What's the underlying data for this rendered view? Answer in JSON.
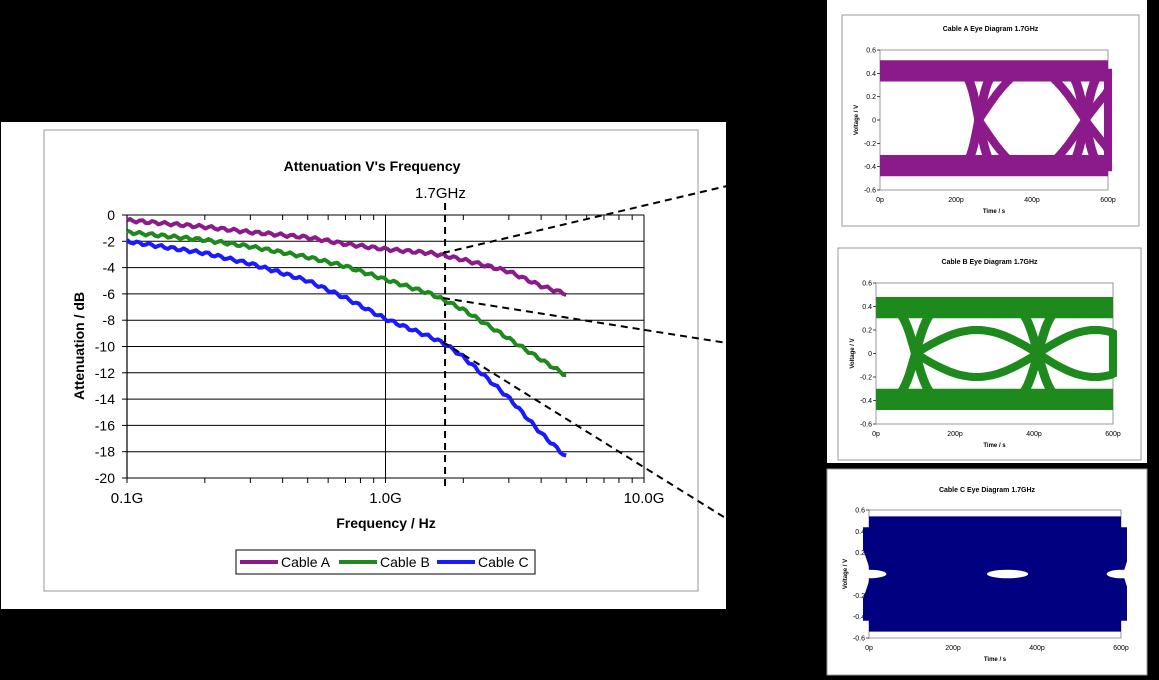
{
  "main_chart": {
    "title": "Attenuation V's Frequency",
    "xlabel": "Frequency / Hz",
    "ylabel": "Attenuation / dB",
    "marker_label": "1.7GHz",
    "x_tick_labels": [
      "0.1G",
      "1.0G",
      "10.0G"
    ],
    "y_tick_labels": [
      "0",
      "-2",
      "-4",
      "-6",
      "-8",
      "-10",
      "-12",
      "-14",
      "-16",
      "-18",
      "-20"
    ],
    "legend": [
      "Cable A",
      "Cable B",
      "Cable C"
    ]
  },
  "eye_titles": [
    "Cable A Eye Diagram 1.7GHz",
    "Cable B Eye Diagram 1.7GHz",
    "Cable C Eye Diagram 1.7GHz"
  ],
  "eye_xlabel": "Time / s",
  "eye_ylabel": "Voltage / V",
  "eye_x_tick_labels": [
    "0p",
    "200p",
    "400p",
    "600p"
  ],
  "eye_y_tick_labels": [
    "0.6",
    "0.4",
    "0.2",
    "0",
    "-0.2",
    "-0.4",
    "-0.6"
  ],
  "colors": {
    "cable_a": "#8b1a8b",
    "cable_b": "#1e8a1e",
    "cable_c": "#1a1aff",
    "cable_c_eye": "#000080"
  },
  "chart_data": [
    {
      "type": "line",
      "title": "Attenuation V's Frequency",
      "xlabel": "Frequency / Hz",
      "ylabel": "Attenuation / dB",
      "x_scale": "log",
      "x_unit": "GHz",
      "xlim": [
        0.1,
        10
      ],
      "ylim": [
        -20,
        0
      ],
      "grid": true,
      "legend_position": "bottom",
      "annotation": {
        "label": "1.7GHz",
        "x": 1.7
      },
      "x": [
        0.1,
        0.2,
        0.3,
        0.5,
        0.7,
        1.0,
        1.5,
        1.7,
        2.0,
        3.0,
        4.0,
        5.0
      ],
      "series": [
        {
          "name": "Cable A",
          "values": [
            -0.4,
            -0.9,
            -1.3,
            -1.7,
            -2.2,
            -2.6,
            -2.9,
            -3.1,
            -3.4,
            -4.3,
            -5.4,
            -6.0
          ]
        },
        {
          "name": "Cable B",
          "values": [
            -1.3,
            -1.9,
            -2.4,
            -3.2,
            -3.9,
            -4.9,
            -6.0,
            -6.5,
            -7.2,
            -9.4,
            -11.0,
            -12.2
          ]
        },
        {
          "name": "Cable C",
          "values": [
            -2.0,
            -2.9,
            -3.7,
            -5.0,
            -6.3,
            -7.9,
            -9.3,
            -9.8,
            -10.8,
            -13.9,
            -16.6,
            -18.4
          ]
        }
      ]
    },
    {
      "type": "scatter",
      "title": "Cable A Eye Diagram 1.7GHz",
      "xlabel": "Time / s",
      "ylabel": "Voltage / V",
      "xlim": [
        0,
        600
      ],
      "x_unit": "ps",
      "ylim": [
        -0.6,
        0.6
      ],
      "levels": [
        0.45,
        -0.42
      ],
      "crossings": [
        260,
        540
      ],
      "eye_open_amplitude": 0.44
    },
    {
      "type": "scatter",
      "title": "Cable B Eye Diagram 1.7GHz",
      "xlabel": "Time / s",
      "ylabel": "Voltage / V",
      "xlim": [
        0,
        600
      ],
      "x_unit": "ps",
      "ylim": [
        -0.6,
        0.6
      ],
      "levels": [
        0.42,
        -0.42
      ],
      "crossings": [
        100,
        410
      ],
      "eye_open_amplitude": 0.2
    },
    {
      "type": "scatter",
      "title": "Cable C Eye Diagram 1.7GHz",
      "xlabel": "Time / s",
      "ylabel": "Voltage / V",
      "xlim": [
        0,
        600
      ],
      "x_unit": "ps",
      "ylim": [
        -0.6,
        0.6
      ],
      "levels": [
        0.45,
        -0.45
      ],
      "crossings": [
        20,
        320,
        590
      ],
      "eye_open_amplitude": 0.06
    }
  ]
}
